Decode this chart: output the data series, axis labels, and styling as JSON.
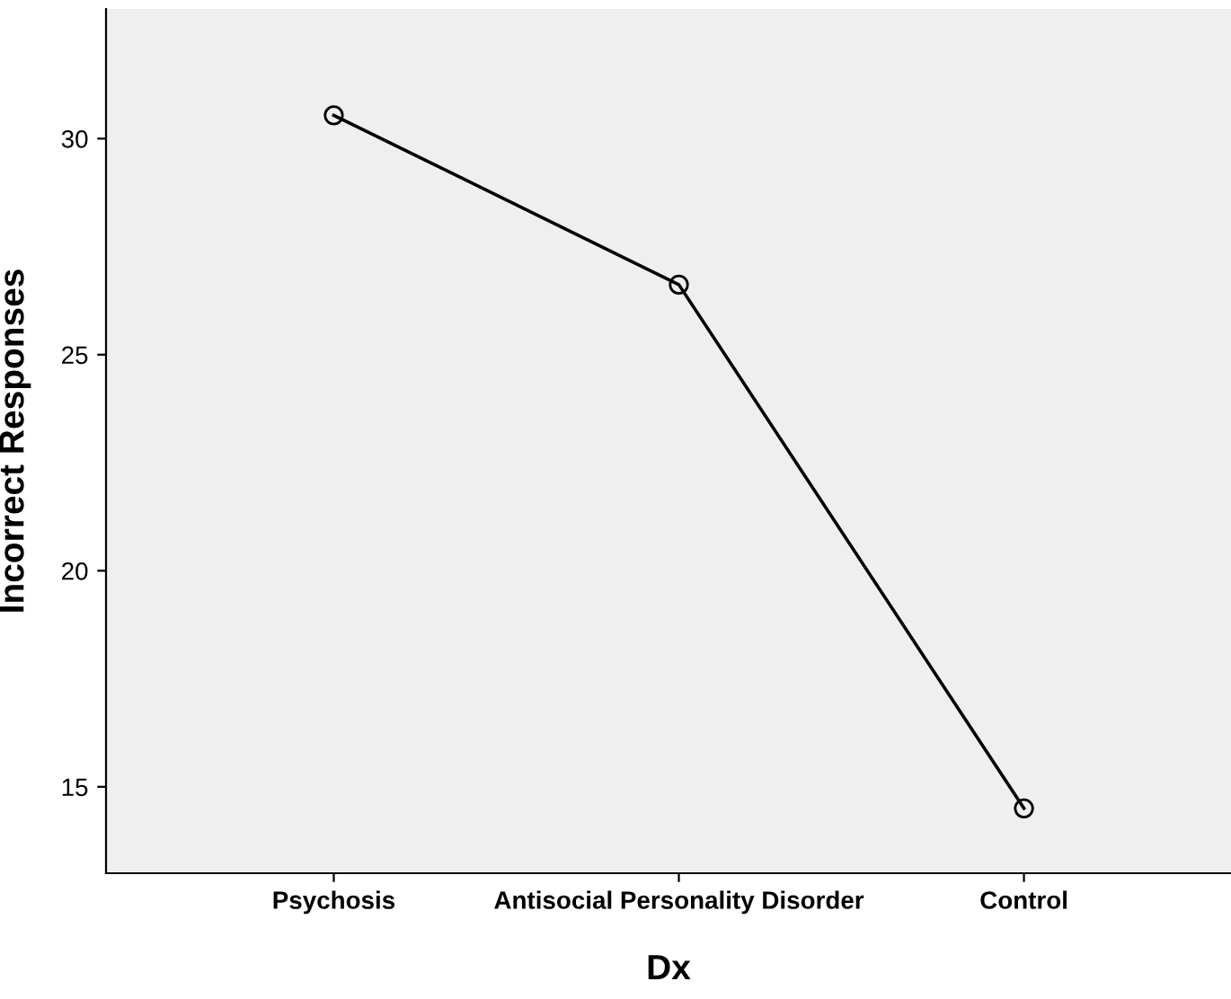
{
  "chart_data": {
    "type": "line",
    "xlabel": "Dx",
    "ylabel": "Incorrect Responses",
    "categories": [
      "Psychosis",
      "Antisocial Personality Disorder",
      "Control"
    ],
    "series": [
      {
        "color": "#000000",
        "values": [
          30.54,
          26.62,
          14.5
        ]
      }
    ],
    "ylim": [
      13,
      33
    ],
    "yticks": [
      15,
      20,
      25,
      30
    ],
    "grid": false,
    "legend": false,
    "marker": "circle",
    "line_style": "solid"
  }
}
